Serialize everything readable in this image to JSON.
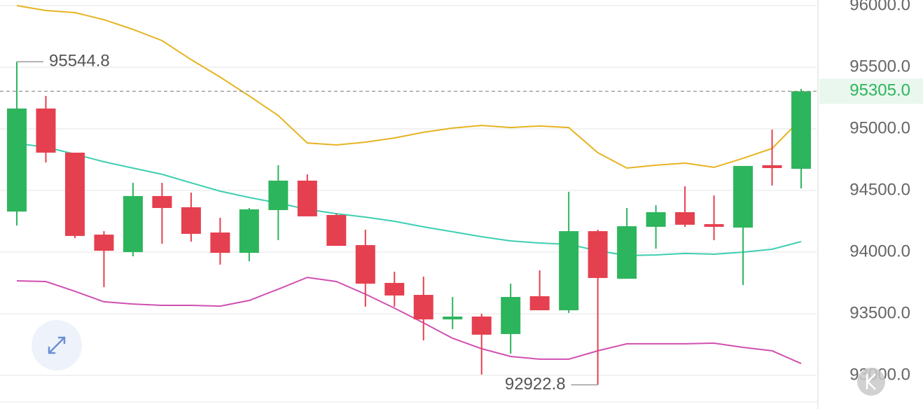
{
  "chart_data": {
    "type": "candlestick",
    "categories": [
      null,
      null,
      null,
      null,
      null,
      null,
      null,
      null,
      null,
      null,
      null,
      null,
      null,
      null,
      null,
      null,
      null,
      null,
      null,
      null,
      null,
      null,
      null,
      null,
      null,
      null,
      null,
      null
    ],
    "open": [
      94329,
      95165,
      94807,
      94142,
      94000,
      94455,
      94364,
      94159,
      93994,
      94341,
      94580,
      94301,
      94057,
      93750,
      93653,
      93454,
      93477,
      93335,
      93642,
      93528,
      94170,
      93784,
      94205,
      94324,
      94227,
      94199,
      94705,
      94676
    ],
    "high": [
      95544.8,
      95267,
      94807,
      94170,
      94562,
      94562,
      94483,
      94278,
      94358,
      94705,
      94631,
      94312,
      94182,
      93841,
      93801,
      93636,
      93500,
      93744,
      93852,
      94489,
      94182,
      94358,
      94381,
      94534,
      94460,
      94699,
      94994,
      95324
    ],
    "low": [
      94216,
      94727,
      94114,
      93716,
      93966,
      94068,
      94085,
      93898,
      93926,
      94097,
      94290,
      94051,
      93557,
      93557,
      93284,
      93375,
      93006,
      93176,
      93528,
      93506,
      92922.8,
      93784,
      94028,
      94205,
      94097,
      93733,
      94540,
      94517
    ],
    "close": [
      95165,
      94807,
      94131,
      94011,
      94455,
      94358,
      94148,
      93994,
      94347,
      94580,
      94290,
      94051,
      93744,
      93648,
      93454,
      93477,
      93330,
      93636,
      93528,
      94170,
      93790,
      94210,
      94324,
      94222,
      94205,
      94699,
      94682,
      95305.0
    ],
    "high_labels": [
      "95544.8",
      null,
      null,
      null,
      null,
      null,
      null,
      null,
      null,
      null,
      null,
      null,
      null,
      null,
      null,
      null,
      null,
      null,
      null,
      null,
      null,
      null,
      null,
      null,
      null,
      null,
      null,
      null
    ],
    "low_labels": [
      null,
      null,
      null,
      null,
      null,
      null,
      null,
      null,
      null,
      null,
      null,
      null,
      null,
      null,
      null,
      null,
      null,
      null,
      null,
      null,
      "92922.8",
      null,
      null,
      null,
      null,
      null,
      null,
      null
    ],
    "close_labels": [
      null,
      null,
      null,
      null,
      null,
      null,
      null,
      null,
      null,
      null,
      null,
      null,
      null,
      null,
      null,
      null,
      null,
      null,
      null,
      null,
      null,
      null,
      null,
      null,
      null,
      null,
      null,
      "95305.0"
    ],
    "up_color": "#2db55d",
    "down_color": "#e5404f",
    "overlays": [
      {
        "color": "#e6b422",
        "values": [
          96000,
          95960,
          95943,
          95886,
          95807,
          95716,
          95562,
          95420,
          95267,
          95108,
          94886,
          94869,
          94892,
          94926,
          94972,
          95006,
          95028,
          95011,
          95023,
          95011,
          94807,
          94682,
          94705,
          94722,
          94688,
          94761,
          94841,
          95080
        ]
      },
      {
        "color": "#3ecfb0",
        "values": [
          94881,
          94852,
          94795,
          94733,
          94682,
          94631,
          94562,
          94494,
          94443,
          94398,
          94347,
          94312,
          94284,
          94250,
          94205,
          94165,
          94125,
          94091,
          94074,
          94063,
          94011,
          93972,
          93977,
          93989,
          93983,
          94000,
          94023,
          94085
        ]
      },
      {
        "color": "#d050b0",
        "values": [
          93767,
          93761,
          93682,
          93597,
          93579,
          93568,
          93568,
          93562,
          93608,
          93699,
          93795,
          93761,
          93659,
          93545,
          93426,
          93301,
          93216,
          93153,
          93131,
          93131,
          93199,
          93256,
          93256,
          93256,
          93261,
          93227,
          93199,
          93096
        ]
      }
    ],
    "ylim": [
      92727,
      96045.5
    ],
    "yticks": [
      {
        "value": 93000,
        "label": "93000.0"
      },
      {
        "value": 93500,
        "label": "93500.0"
      },
      {
        "value": 94000,
        "label": "94000.0"
      },
      {
        "value": 94500,
        "label": "94500.0"
      },
      {
        "value": 95000,
        "label": "95000.0"
      },
      {
        "value": 95500,
        "label": "95500.0"
      },
      {
        "value": 96000,
        "label": "96000.0"
      }
    ],
    "grid": true
  }
}
